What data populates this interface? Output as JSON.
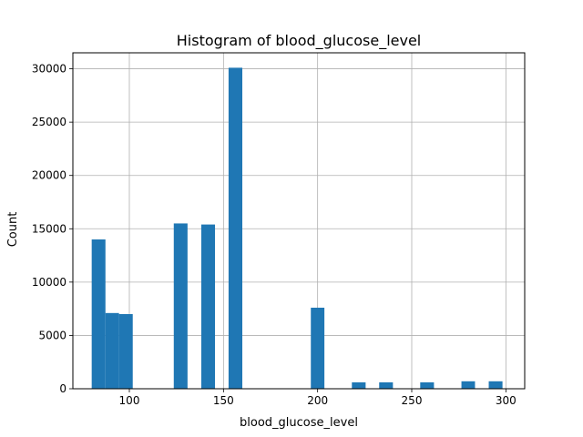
{
  "chart_data": {
    "type": "bar",
    "title": "Histogram of blood_glucose_level",
    "xlabel": "blood_glucose_level",
    "ylabel": "Count",
    "xlim": [
      70,
      310
    ],
    "ylim": [
      0,
      31500
    ],
    "xticks": [
      100,
      150,
      200,
      250,
      300
    ],
    "yticks": [
      0,
      5000,
      10000,
      15000,
      20000,
      25000,
      30000
    ],
    "grid": true,
    "bar_color": "#1f77b4",
    "bins": [
      {
        "x0": 80.0,
        "x1": 87.3,
        "count": 14000
      },
      {
        "x0": 87.3,
        "x1": 94.5,
        "count": 7100
      },
      {
        "x0": 94.5,
        "x1": 101.8,
        "count": 7000
      },
      {
        "x0": 123.6,
        "x1": 130.9,
        "count": 15500
      },
      {
        "x0": 138.2,
        "x1": 145.5,
        "count": 15400
      },
      {
        "x0": 152.7,
        "x1": 160.0,
        "count": 30100
      },
      {
        "x0": 196.4,
        "x1": 203.6,
        "count": 7600
      },
      {
        "x0": 218.2,
        "x1": 225.5,
        "count": 600
      },
      {
        "x0": 232.7,
        "x1": 240.0,
        "count": 600
      },
      {
        "x0": 254.5,
        "x1": 261.8,
        "count": 600
      },
      {
        "x0": 276.4,
        "x1": 283.6,
        "count": 700
      },
      {
        "x0": 290.9,
        "x1": 298.2,
        "count": 700
      }
    ]
  }
}
